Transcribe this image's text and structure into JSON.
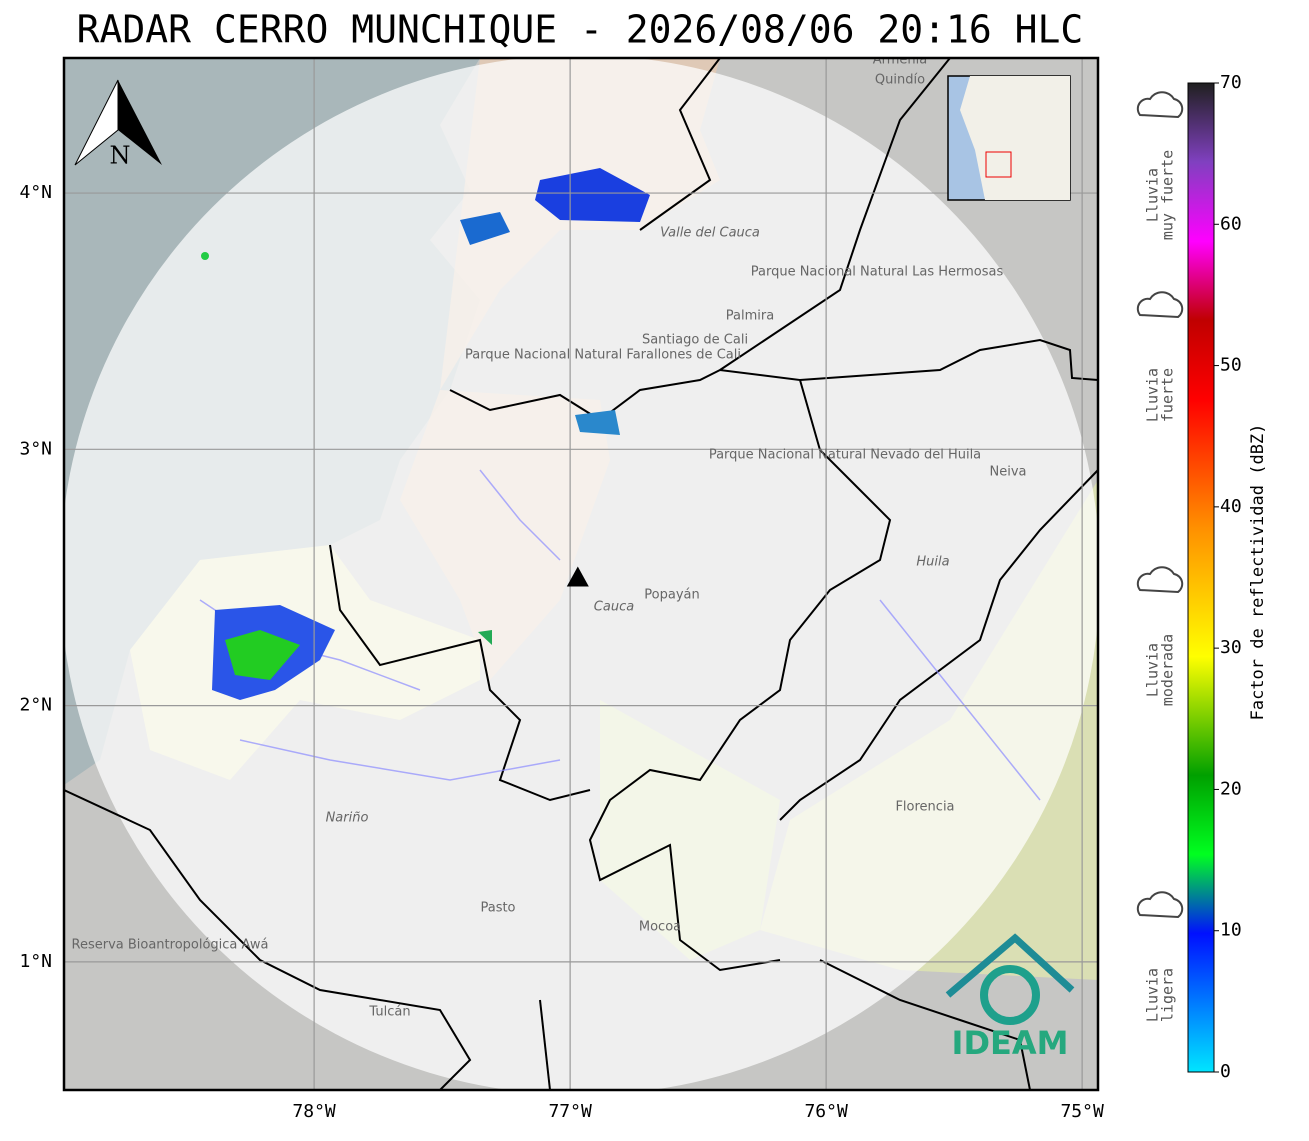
{
  "chart_data": {
    "type": "radar-map",
    "title": "RADAR CERRO MUNCHIQUE - 2026/08/06 20:16 HLC",
    "xlim": [
      -78.977,
      -74.938
    ],
    "ylim": [
      0.5,
      4.527
    ],
    "xticks": [
      {
        "value": -78,
        "label": "78°W"
      },
      {
        "value": -77,
        "label": "77°W"
      },
      {
        "value": -76,
        "label": "76°W"
      },
      {
        "value": -75,
        "label": "75°W"
      }
    ],
    "yticks": [
      {
        "value": 1,
        "label": "1°N"
      },
      {
        "value": 2,
        "label": "2°N"
      },
      {
        "value": 3,
        "label": "3°N"
      },
      {
        "value": 4,
        "label": "4°N"
      }
    ],
    "grid": true,
    "radar": {
      "lon": -76.97,
      "lat": 2.5
    },
    "north_label": "N",
    "colorbar": {
      "label": "Factor de reflectividad (dBZ)",
      "lim": [
        0,
        70
      ],
      "ticks": [
        0,
        10,
        20,
        30,
        40,
        50,
        60,
        70
      ]
    },
    "rain_classes": [
      {
        "lines": [
          "Lluvia",
          "muy fuerte"
        ]
      },
      {
        "lines": [
          "Lluvia",
          "fuerte"
        ]
      },
      {
        "lines": [
          "Lluvia",
          "moderada"
        ]
      },
      {
        "lines": [
          "Lluvia",
          "ligera"
        ]
      }
    ],
    "places": [
      "Santiago de Cali",
      "Palmira",
      "Popayán",
      "Cauca",
      "Neiva",
      "Huila",
      "Florencia",
      "Nariño",
      "Pasto",
      "Mocoa",
      "Tulcán",
      "Valle del Cauca",
      "Quindío",
      "Armenia",
      "Parque Nacional Natural Farallones de Cali",
      "Parque Nacional Natural Las Hermosas",
      "Parque Nacional Natural Nevado del Huila",
      "Reserva Bioantropológica Awá"
    ],
    "logo": "IDEAM"
  }
}
